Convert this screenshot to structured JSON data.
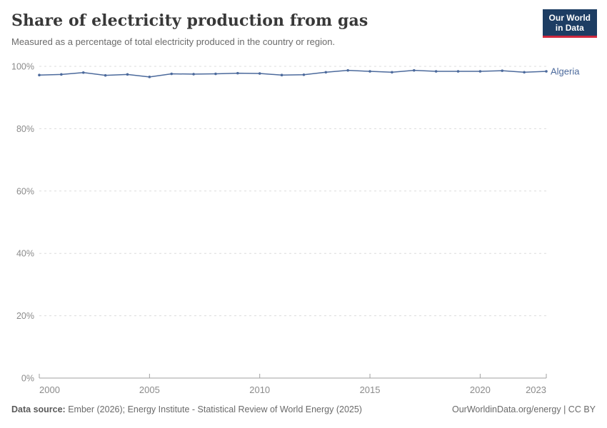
{
  "header": {
    "title": "Share of electricity production from gas",
    "subtitle": "Measured as a percentage of total electricity produced in the country or region."
  },
  "logo": {
    "line1": "Our World",
    "line2": "in Data"
  },
  "chart_data": {
    "type": "line",
    "title": "Share of electricity production from gas",
    "subtitle": "Measured as a percentage of total electricity produced in the country or region.",
    "xlabel": "",
    "ylabel": "",
    "xlim": [
      2000,
      2023
    ],
    "ylim": [
      0,
      100
    ],
    "xticks": [
      2000,
      2005,
      2010,
      2015,
      2020,
      2023
    ],
    "yticks": [
      0,
      20,
      40,
      60,
      80,
      100
    ],
    "ytick_suffix": "%",
    "grid": "horizontal-dashed",
    "legend_position": "end-of-line-label",
    "end_label": "Algeria",
    "series": [
      {
        "name": "Algeria",
        "color": "#4C6A9C",
        "x": [
          2000,
          2001,
          2002,
          2003,
          2004,
          2005,
          2006,
          2007,
          2008,
          2009,
          2010,
          2011,
          2012,
          2013,
          2014,
          2015,
          2016,
          2017,
          2018,
          2019,
          2020,
          2021,
          2022,
          2023
        ],
        "values": [
          97.2,
          97.4,
          98.0,
          97.1,
          97.4,
          96.6,
          97.6,
          97.5,
          97.6,
          97.8,
          97.7,
          97.2,
          97.3,
          98.1,
          98.7,
          98.4,
          98.1,
          98.7,
          98.4,
          98.4,
          98.4,
          98.6,
          98.1,
          98.4
        ]
      }
    ]
  },
  "footer": {
    "source_label": "Data source:",
    "source_text": " Ember (2026); Energy Institute - Statistical Review of World Energy (2025)",
    "credit": "OurWorldinData.org/energy | CC BY"
  },
  "colors": {
    "line": "#4C6A9C",
    "grid": "#dcdcdc",
    "axis": "#a1a1a1",
    "tick_text": "#8b8b8b",
    "title_text": "#383838",
    "logo_bg": "#1d3d63",
    "logo_stripe": "#d0293e"
  }
}
